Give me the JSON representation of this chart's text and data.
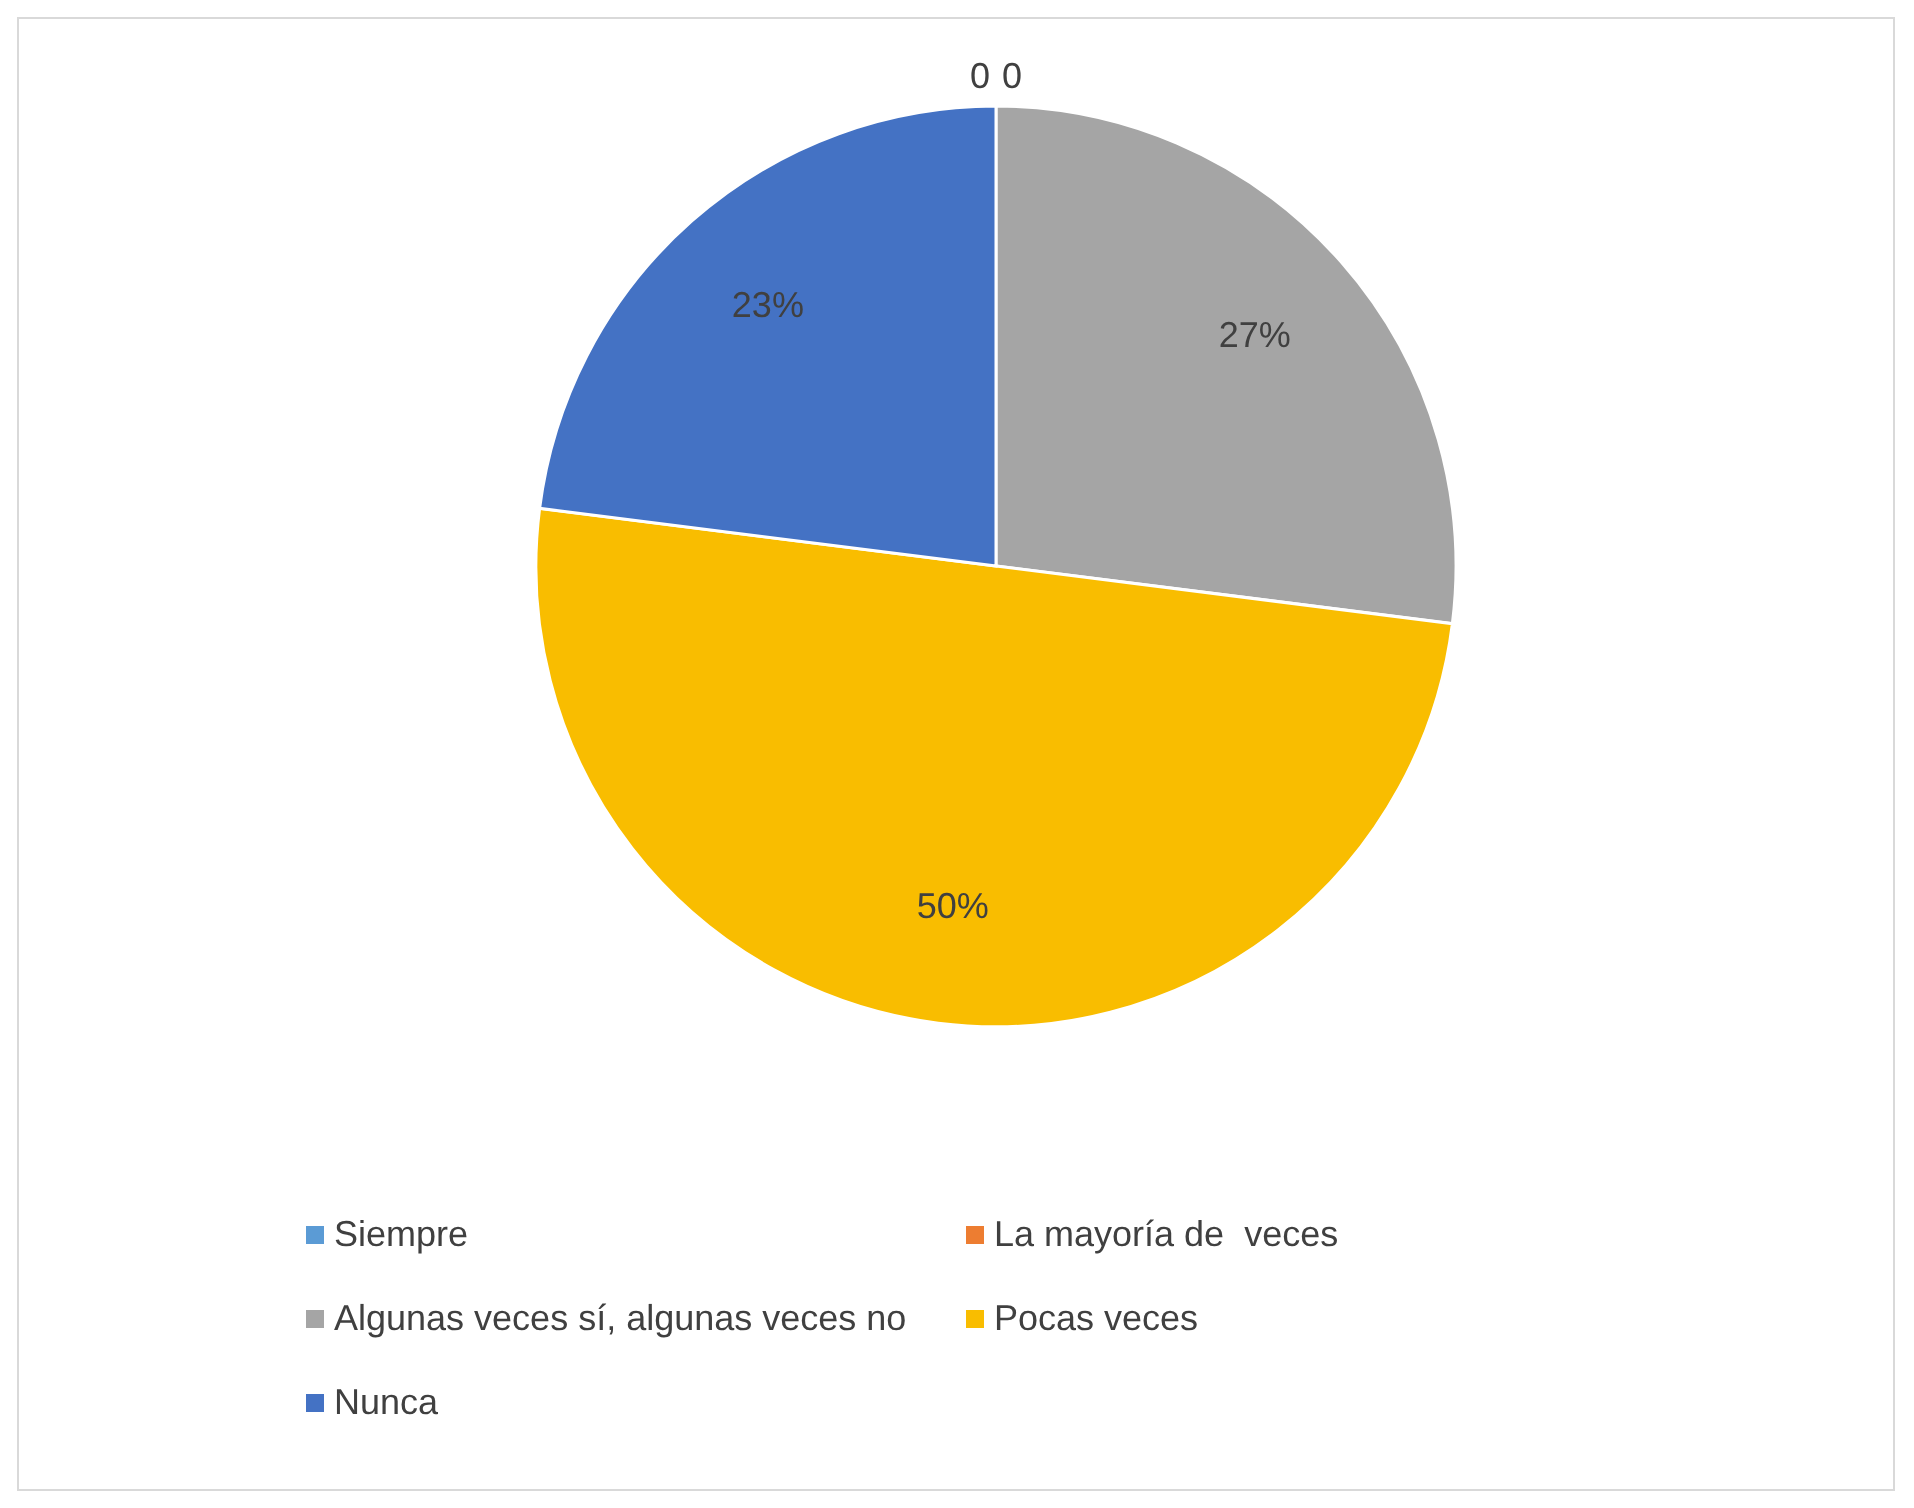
{
  "chart_data": {
    "type": "pie",
    "categories": [
      "Siempre",
      "La mayoría de  veces",
      "Algunas veces sí, algunas veces no",
      "Pocas veces",
      "Nunca"
    ],
    "values": [
      0,
      0,
      27,
      50,
      23
    ],
    "colors": [
      "#5b9bd5",
      "#ed7d31",
      "#a5a5a5",
      "#f9bd00",
      "#4472c4"
    ],
    "value_labels": [
      "0",
      "0",
      "27%",
      "50%",
      "23%"
    ],
    "legend": "bottom"
  }
}
